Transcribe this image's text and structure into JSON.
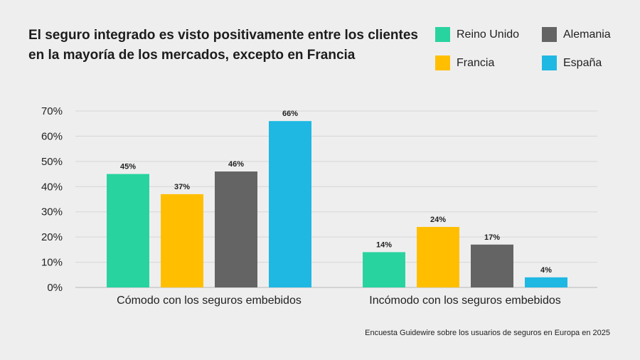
{
  "chart_data": {
    "type": "bar",
    "title": "El seguro integrado es visto positivamente entre los clientes en la mayoría de los mercados, excepto en Francia",
    "categories": [
      "Cómodo con los seguros embebidos",
      "Incómodo con los seguros embebidos"
    ],
    "series": [
      {
        "name": "Reino Unido",
        "color": "#29d3a0",
        "values": [
          45,
          14
        ],
        "labels": [
          "45%",
          "14%"
        ]
      },
      {
        "name": "Francia",
        "color": "#ffbf00",
        "values": [
          37,
          24
        ],
        "labels": [
          "37%",
          "24%"
        ]
      },
      {
        "name": "Alemania",
        "color": "#646464",
        "values": [
          46,
          17
        ],
        "labels": [
          "46%",
          "17%"
        ]
      },
      {
        "name": "España",
        "color": "#1fb8e3",
        "values": [
          66,
          4
        ],
        "labels": [
          "66%",
          "4%"
        ]
      }
    ],
    "ylim": [
      0,
      70
    ],
    "yticks": [
      0,
      10,
      20,
      30,
      40,
      50,
      60,
      70
    ],
    "ytick_labels": [
      "0%",
      "10%",
      "20%",
      "30%",
      "40%",
      "50%",
      "60%",
      "70%"
    ],
    "grid": true,
    "legend_position": "top-right",
    "source": "Encuesta Guidewire sobre los usuarios de seguros en Europa en 2025"
  }
}
